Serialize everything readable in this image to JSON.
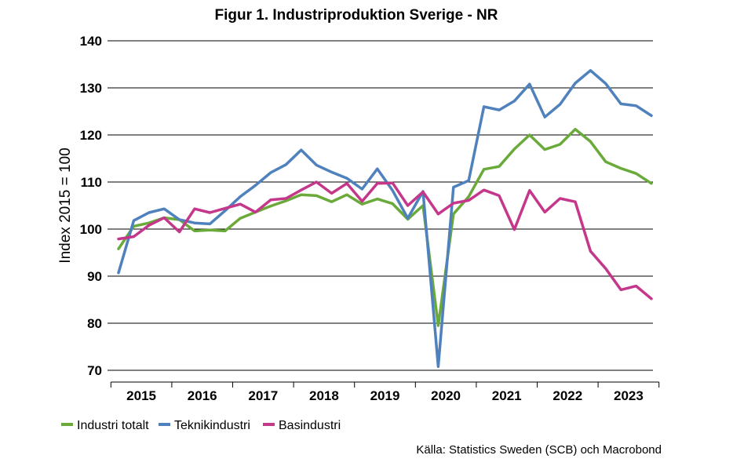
{
  "chart_data": {
    "type": "line",
    "title": "Figur 1. Industriproduktion Sverige  - NR",
    "ylabel": "Index 2015 = 100",
    "xlabel": "",
    "ylim": [
      70,
      140
    ],
    "yticks": [
      70,
      80,
      90,
      100,
      110,
      120,
      130,
      140
    ],
    "grid": true,
    "legend_position": "bottom-left",
    "years": [
      "2015",
      "2016",
      "2017",
      "2018",
      "2019",
      "2020",
      "2021",
      "2022",
      "2023"
    ],
    "x": [
      "2015Q1",
      "2015Q2",
      "2015Q3",
      "2015Q4",
      "2016Q1",
      "2016Q2",
      "2016Q3",
      "2016Q4",
      "2017Q1",
      "2017Q2",
      "2017Q3",
      "2017Q4",
      "2018Q1",
      "2018Q2",
      "2018Q3",
      "2018Q4",
      "2019Q1",
      "2019Q2",
      "2019Q3",
      "2019Q4",
      "2020Q1",
      "2020Q2",
      "2020Q3",
      "2020Q4",
      "2021Q1",
      "2021Q2",
      "2021Q3",
      "2021Q4",
      "2022Q1",
      "2022Q2",
      "2022Q3",
      "2022Q4",
      "2023Q1",
      "2023Q2",
      "2023Q3",
      "2023Q4"
    ],
    "series": [
      {
        "name": "Industri totalt",
        "color": "#6aaa3a",
        "values": [
          95.8,
          100.6,
          101.3,
          102.4,
          102.0,
          99.6,
          99.8,
          99.6,
          102.3,
          103.6,
          104.9,
          106.0,
          107.3,
          107.1,
          105.8,
          107.3,
          105.3,
          106.4,
          105.4,
          102.1,
          105.0,
          79.5,
          103.2,
          106.9,
          112.7,
          113.3,
          117.0,
          120.0,
          116.9,
          118.0,
          121.2,
          118.6,
          114.3,
          112.9,
          111.8,
          109.7
        ]
      },
      {
        "name": "Teknikindustri",
        "color": "#4f81bd",
        "values": [
          90.7,
          101.8,
          103.5,
          104.3,
          102.0,
          101.3,
          101.1,
          103.9,
          106.9,
          109.3,
          112.0,
          113.7,
          116.8,
          113.6,
          112.1,
          110.8,
          108.5,
          112.8,
          108.2,
          102.3,
          108.0,
          70.8,
          108.9,
          110.3,
          126.0,
          125.3,
          127.2,
          130.8,
          123.8,
          126.5,
          131.0,
          133.7,
          130.9,
          126.6,
          126.2,
          124.1
        ]
      },
      {
        "name": "Basindustri",
        "color": "#c4378a",
        "values": [
          97.9,
          98.4,
          100.8,
          102.4,
          99.4,
          104.3,
          103.5,
          104.4,
          105.3,
          103.6,
          106.2,
          106.5,
          108.3,
          110.0,
          107.6,
          109.7,
          105.9,
          109.7,
          109.8,
          105.0,
          107.9,
          103.2,
          105.5,
          106.1,
          108.3,
          107.1,
          99.9,
          108.2,
          103.6,
          106.5,
          105.8,
          95.3,
          91.6,
          87.1,
          87.9,
          85.2
        ]
      }
    ],
    "source": "Källa: Statistics Sweden (SCB) och Macrobond"
  }
}
